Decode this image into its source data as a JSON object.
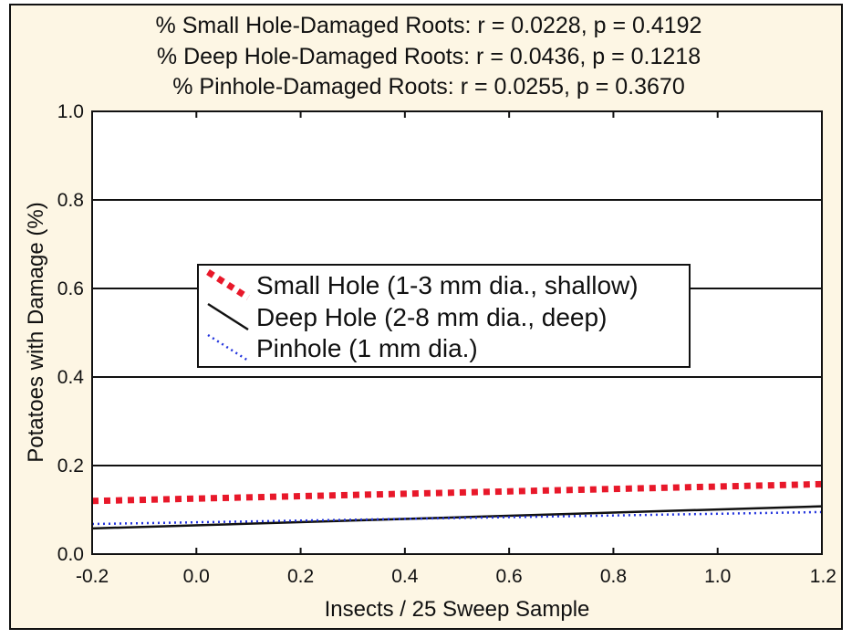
{
  "chart_data": {
    "type": "line",
    "header_lines": [
      "% Small Hole-Damaged Roots:   r = 0.0228, p = 0.4192",
      "% Deep Hole-Damaged Roots:   r = 0.0436, p = 0.1218",
      "% Pinhole-Damaged Roots:   r = 0.0255, p = 0.3670"
    ],
    "xlabel": "Insects / 25 Sweep Sample",
    "ylabel": "Potatoes with Damage (%)",
    "xlim": [
      -0.2,
      1.2
    ],
    "ylim": [
      0.0,
      1.0
    ],
    "xticks": [
      "-0.2",
      "0.0",
      "0.2",
      "0.4",
      "0.6",
      "0.8",
      "1.0",
      "1.2"
    ],
    "xtick_values": [
      -0.2,
      0.0,
      0.2,
      0.4,
      0.6,
      0.8,
      1.0,
      1.2
    ],
    "yticks": [
      "0.0",
      "0.2",
      "0.4",
      "0.6",
      "0.8",
      "1.0"
    ],
    "ytick_values": [
      0.0,
      0.2,
      0.4,
      0.6,
      0.8,
      1.0
    ],
    "grid": "horizontal",
    "legend_position": "center-left",
    "series": [
      {
        "name": "Small Hole (1-3 mm dia., shallow)",
        "color": "#e8182a",
        "style": "dashed-thick",
        "x": [
          -0.2,
          1.2
        ],
        "y": [
          0.12,
          0.158
        ]
      },
      {
        "name": "Deep Hole (2-8 mm dia., deep)",
        "color": "#111111",
        "style": "solid",
        "x": [
          -0.2,
          1.2
        ],
        "y": [
          0.058,
          0.108
        ]
      },
      {
        "name": "Pinhole (1 mm dia.)",
        "color": "#2233dd",
        "style": "dotted",
        "x": [
          -0.2,
          1.2
        ],
        "y": [
          0.068,
          0.095
        ]
      }
    ]
  }
}
